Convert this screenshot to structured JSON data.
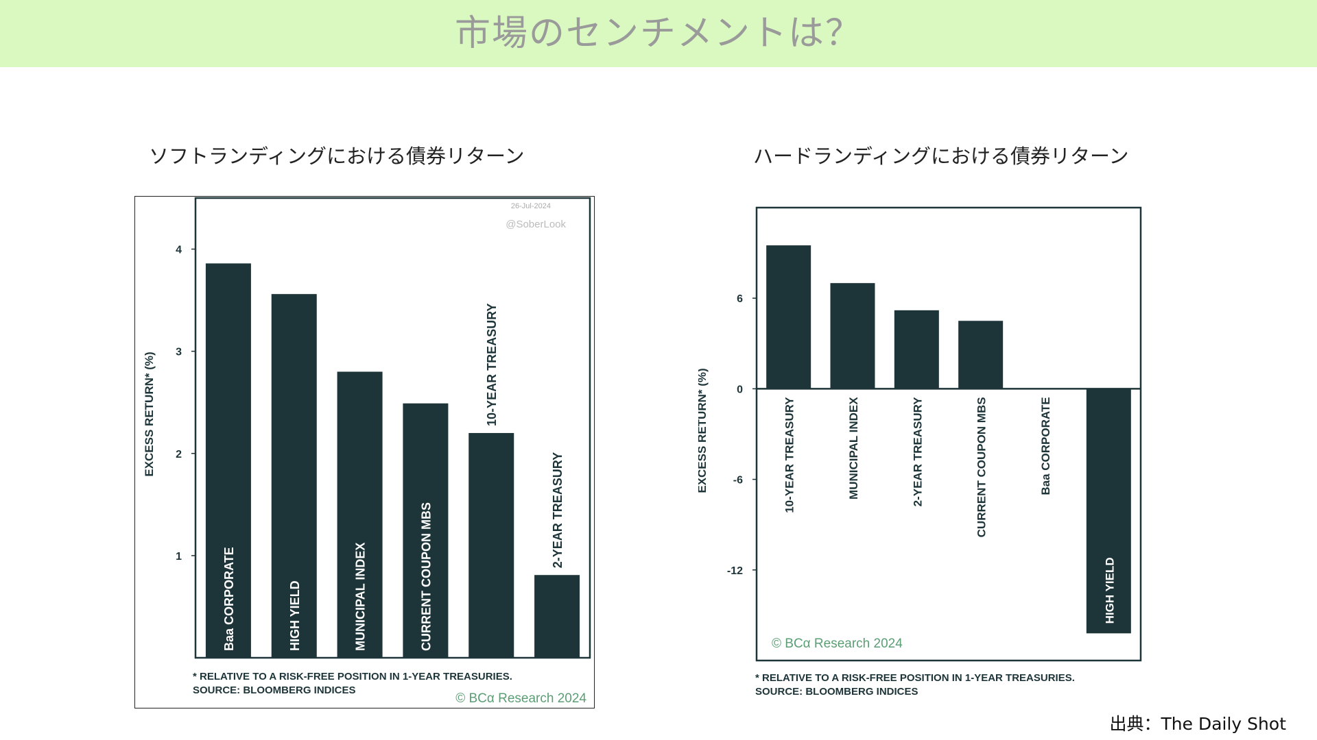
{
  "page": {
    "title": "市場のセンチメントは？",
    "source": "出典：The Daily Shot"
  },
  "chart_data": [
    {
      "type": "bar",
      "title": "ソフトランディングにおける債券リターン",
      "ylabel": "EXCESS RETURN* (%)",
      "categories": [
        "Baa CORPORATE",
        "HIGH YIELD",
        "MUNICIPAL INDEX",
        "CURRENT COUPON MBS",
        "10-YEAR TREASURY",
        "2-YEAR TREASURY"
      ],
      "values": [
        3.86,
        3.56,
        2.8,
        2.49,
        2.2,
        0.81
      ],
      "ylim": [
        0,
        4.5
      ],
      "yticks": [
        1,
        2,
        3,
        4
      ],
      "bar_color": "#1d3438",
      "date": "26-Jul-2024",
      "watermark": "@SoberLook",
      "footnote": "* RELATIVE TO A RISK-FREE POSITION IN 1-YEAR TREASURIES.",
      "source_note": "SOURCE: BLOOMBERG INDICES",
      "credit": "© BCα Research 2024"
    },
    {
      "type": "bar",
      "title": "ハードランディングにおける債券リターン",
      "ylabel": "EXCESS RETURN* (%)",
      "categories": [
        "10-YEAR TREASURY",
        "MUNICIPAL INDEX",
        "2-YEAR TREASURY",
        "CURRENT COUPON MBS",
        "Baa CORPORATE",
        "HIGH YIELD"
      ],
      "values": [
        9.5,
        7.0,
        5.2,
        4.5,
        0,
        -16.2
      ],
      "ylim": [
        -18,
        12
      ],
      "yticks": [
        6,
        0,
        -6,
        -12
      ],
      "bar_color": "#1d3438",
      "footnote": "* RELATIVE TO A RISK-FREE POSITION IN 1-YEAR TREASURIES.",
      "source_note": "SOURCE: BLOOMBERG INDICES",
      "credit": "© BCα Research 2024"
    }
  ]
}
